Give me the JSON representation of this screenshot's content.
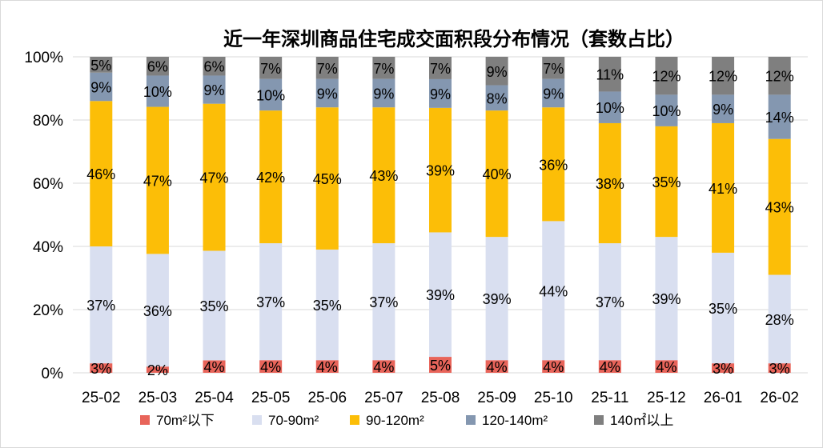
{
  "chart_data": {
    "type": "bar",
    "stacked": true,
    "percent": true,
    "title": "近一年深圳商品住宅成交面积段分布情况（套数占比）",
    "xlabel": "",
    "ylabel": "",
    "ylim": [
      0,
      100
    ],
    "yticks": [
      "0%",
      "20%",
      "40%",
      "60%",
      "80%",
      "100%"
    ],
    "grid": true,
    "legend_position": "bottom",
    "categories": [
      "25-02",
      "25-03",
      "25-04",
      "25-05",
      "25-06",
      "25-07",
      "25-08",
      "25-09",
      "25-10",
      "25-11",
      "25-12",
      "26-01",
      "26-02"
    ],
    "series": [
      {
        "name": "70m²以下",
        "color": "#e8645a",
        "values": [
          3,
          2,
          4,
          4,
          4,
          4,
          5,
          4,
          4,
          4,
          4,
          3,
          3
        ]
      },
      {
        "name": "70-90m²",
        "color": "#d9dff0",
        "values": [
          37,
          36,
          35,
          37,
          35,
          37,
          39,
          39,
          44,
          37,
          39,
          35,
          28
        ]
      },
      {
        "name": "90-120m²",
        "color": "#fcbe07",
        "values": [
          46,
          47,
          47,
          42,
          45,
          43,
          39,
          40,
          36,
          38,
          35,
          41,
          43
        ]
      },
      {
        "name": "120-140m²",
        "color": "#8497b0",
        "values": [
          9,
          10,
          9,
          10,
          9,
          9,
          9,
          8,
          9,
          10,
          10,
          9,
          14
        ]
      },
      {
        "name": "140㎡以上",
        "color": "#7f7f7f",
        "values": [
          5,
          6,
          6,
          7,
          7,
          7,
          7,
          9,
          7,
          11,
          12,
          12,
          12
        ]
      }
    ]
  }
}
